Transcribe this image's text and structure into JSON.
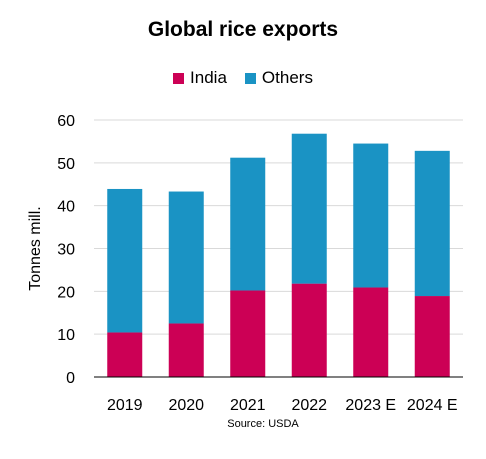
{
  "chart_data": {
    "type": "bar",
    "stacked": true,
    "title": "Global rice exports",
    "ylabel": "Tonnes mill.",
    "xlabel": "",
    "categories": [
      "2019",
      "2020",
      "2021",
      "2022",
      "2023 E",
      "2024 E"
    ],
    "series": [
      {
        "name": "India",
        "color": "#cc0055",
        "values": [
          10.4,
          12.5,
          20.2,
          21.8,
          20.9,
          18.9
        ]
      },
      {
        "name": "Others",
        "color": "#1a93c4",
        "values": [
          33.5,
          30.8,
          31.0,
          35.0,
          33.6,
          33.9
        ]
      }
    ],
    "ylim": [
      0,
      60
    ],
    "yticks": [
      0,
      10,
      20,
      30,
      40,
      50,
      60
    ],
    "grid": true,
    "legend": "top-center",
    "source": "Source: USDA"
  }
}
